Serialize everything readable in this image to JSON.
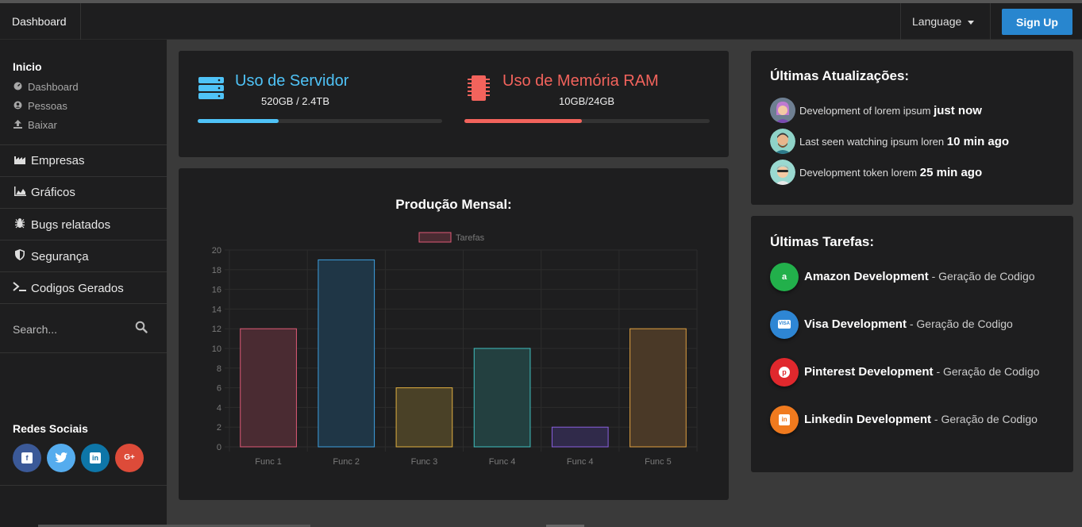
{
  "topbar": {
    "brand": "Dashboard",
    "language": "Language",
    "signup": "Sign Up"
  },
  "sidebar": {
    "title": "Inicio",
    "sub_items": [
      {
        "label": "Dashboard",
        "icon": "dashboard-icon"
      },
      {
        "label": "Pessoas",
        "icon": "user-icon"
      },
      {
        "label": "Baixar",
        "icon": "upload-icon"
      }
    ],
    "items": [
      {
        "label": "Empresas",
        "icon": "industry-icon"
      },
      {
        "label": "Gráficos",
        "icon": "area-chart-icon"
      },
      {
        "label": "Bugs relatados",
        "icon": "bug-icon"
      },
      {
        "label": "Segurança",
        "icon": "shield-icon"
      },
      {
        "label": "Codigos Gerados",
        "icon": "terminal-icon"
      }
    ],
    "search_placeholder": "Search...",
    "social_title": "Redes Sociais",
    "social": [
      {
        "name": "facebook",
        "color": "#3b5998"
      },
      {
        "name": "twitter",
        "color": "#55acee"
      },
      {
        "name": "linkedin",
        "color": "#0e76a8"
      },
      {
        "name": "google-plus",
        "color": "#dd4b39"
      }
    ]
  },
  "stats": {
    "server": {
      "title": "Uso de Servidor",
      "value": "520GB / 2.4TB",
      "progress": 0.33,
      "color": "#4fc3f7"
    },
    "ram": {
      "title": "Uso de Memória RAM",
      "value": "10GB/24GB",
      "progress": 0.48,
      "color": "#f2635c"
    }
  },
  "chart_data": {
    "type": "bar",
    "title": "Produção Mensal:",
    "categories": [
      "Func 1",
      "Func 2",
      "Func 3",
      "Func 4",
      "Func 4",
      "Func 5"
    ],
    "series": [
      {
        "name": "Tarefas",
        "values": [
          12,
          19,
          6,
          10,
          2,
          12
        ]
      }
    ],
    "ylim": [
      0,
      20
    ],
    "yticks": [
      0,
      2,
      4,
      6,
      8,
      10,
      12,
      14,
      16,
      18,
      20
    ],
    "grid": true,
    "legend": "top-center",
    "bar_fill": [
      "#4a2b32",
      "#1f3646",
      "#4a4127",
      "#234040",
      "#302a4a",
      "#4a3927"
    ],
    "bar_stroke": [
      "#e05a77",
      "#3ea0e0",
      "#e0b040",
      "#40c0c0",
      "#8a60e0",
      "#e0a040"
    ]
  },
  "updates": {
    "title": "Últimas Atualizações:",
    "items": [
      {
        "text": "Development of lorem ipsum",
        "when": "just now"
      },
      {
        "text": "Last seen watching ipsum loren",
        "when": "10 min ago"
      },
      {
        "text": "Development token lorem",
        "when": "25 min ago"
      }
    ]
  },
  "tasks": {
    "title": "Últimas Tarefas:",
    "items": [
      {
        "name": "Amazon Development",
        "desc": "- Geração de Codigo",
        "color": "#22b04b",
        "icon": "amazon-icon"
      },
      {
        "name": "Visa Development",
        "desc": "- Geração de Codigo",
        "color": "#2e86d4",
        "icon": "visa-icon"
      },
      {
        "name": "Pinterest Development",
        "desc": "- Geração de Codigo",
        "color": "#e0282d",
        "icon": "pinterest-icon"
      },
      {
        "name": "Linkedin Development",
        "desc": "- Geração de Codigo",
        "color": "#f07a1e",
        "icon": "linkedin-icon"
      }
    ]
  }
}
